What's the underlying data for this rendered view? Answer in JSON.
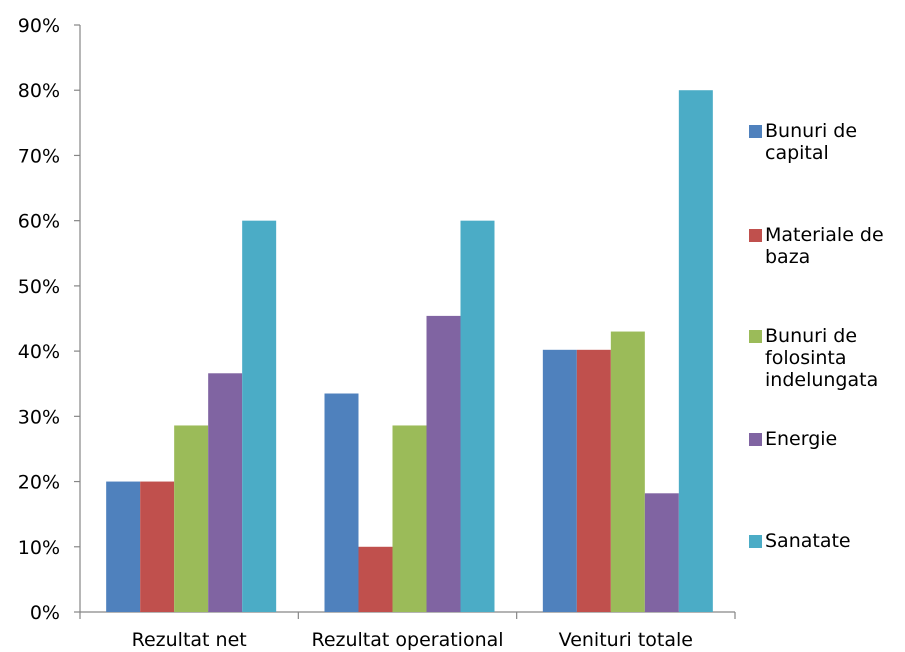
{
  "chart_data": {
    "type": "bar",
    "categories": [
      "Rezultat net",
      "Rezultat operational",
      "Venituri totale"
    ],
    "series": [
      {
        "name": "Bunuri de capital",
        "color": "#4f81bd",
        "values": [
          20,
          33.5,
          40.2
        ]
      },
      {
        "name": "Materiale de baza",
        "color": "#c0504d",
        "values": [
          20,
          10,
          40.2
        ]
      },
      {
        "name": "Bunuri de folosinta indelungata",
        "color": "#9bbb59",
        "values": [
          28.6,
          28.6,
          43
        ]
      },
      {
        "name": "Energie",
        "color": "#8064a2",
        "values": [
          36.6,
          45.4,
          18.2
        ]
      },
      {
        "name": "Sanatate",
        "color": "#4bacc6",
        "values": [
          60,
          60,
          80
        ]
      }
    ],
    "yticks": [
      "0%",
      "10%",
      "20%",
      "30%",
      "40%",
      "50%",
      "60%",
      "70%",
      "80%",
      "90%"
    ],
    "ylim": [
      0,
      90
    ],
    "grid": false,
    "legend": "right",
    "title": "",
    "xlabel": "",
    "ylabel": ""
  }
}
